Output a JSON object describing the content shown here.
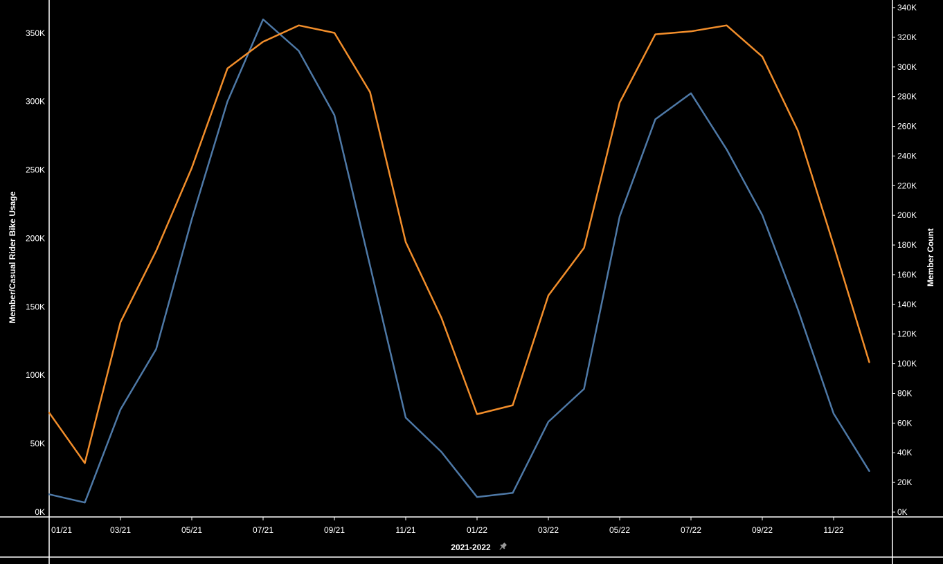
{
  "chart_data": {
    "type": "line",
    "xlabel": "2021-2022",
    "ylabel_left": "Member/Casual Rider Bike Usage",
    "ylabel_right": "Member Count",
    "x": [
      "01/21",
      "02/21",
      "03/21",
      "04/21",
      "05/21",
      "06/21",
      "07/21",
      "08/21",
      "09/21",
      "10/21",
      "11/21",
      "12/21",
      "01/22",
      "02/22",
      "03/22",
      "04/22",
      "05/22",
      "06/22",
      "07/22",
      "08/22",
      "09/22",
      "10/22",
      "11/22",
      "12/22"
    ],
    "x_tick_labels": [
      "01/21",
      "03/21",
      "05/21",
      "07/21",
      "09/21",
      "11/21",
      "01/22",
      "03/22",
      "05/22",
      "07/22",
      "09/22",
      "11/22"
    ],
    "ylim_left": [
      0,
      360000
    ],
    "ylim_right": [
      0,
      340000
    ],
    "y_ticks_left": [
      0,
      50000,
      100000,
      150000,
      200000,
      250000,
      300000,
      350000
    ],
    "y_tick_labels_left": [
      "0K",
      "50K",
      "100K",
      "150K",
      "200K",
      "250K",
      "300K",
      "350K"
    ],
    "y_ticks_right": [
      0,
      20000,
      40000,
      60000,
      80000,
      100000,
      120000,
      140000,
      160000,
      180000,
      200000,
      220000,
      240000,
      260000,
      280000,
      300000,
      320000,
      340000
    ],
    "y_tick_labels_right": [
      "0K",
      "20K",
      "40K",
      "60K",
      "80K",
      "100K",
      "120K",
      "140K",
      "160K",
      "180K",
      "200K",
      "220K",
      "240K",
      "260K",
      "280K",
      "300K",
      "320K",
      "340K"
    ],
    "grid": false,
    "series": [
      {
        "axis": "left",
        "color": "#4e79a7",
        "values": [
          13000,
          7000,
          75000,
          119000,
          214000,
          300000,
          360000,
          337000,
          290000,
          180000,
          69000,
          44000,
          11000,
          14000,
          66000,
          90000,
          216000,
          287000,
          306000,
          265000,
          217000,
          148000,
          72000,
          30000
        ]
      },
      {
        "axis": "right",
        "color": "#f28e2b",
        "values": [
          67000,
          33000,
          128000,
          176000,
          232000,
          299000,
          317000,
          328000,
          323000,
          283000,
          182000,
          131000,
          66000,
          72000,
          146000,
          178000,
          276000,
          322000,
          324000,
          328000,
          307000,
          257000,
          180000,
          101000
        ]
      }
    ],
    "pin_icon": "pin-icon"
  }
}
